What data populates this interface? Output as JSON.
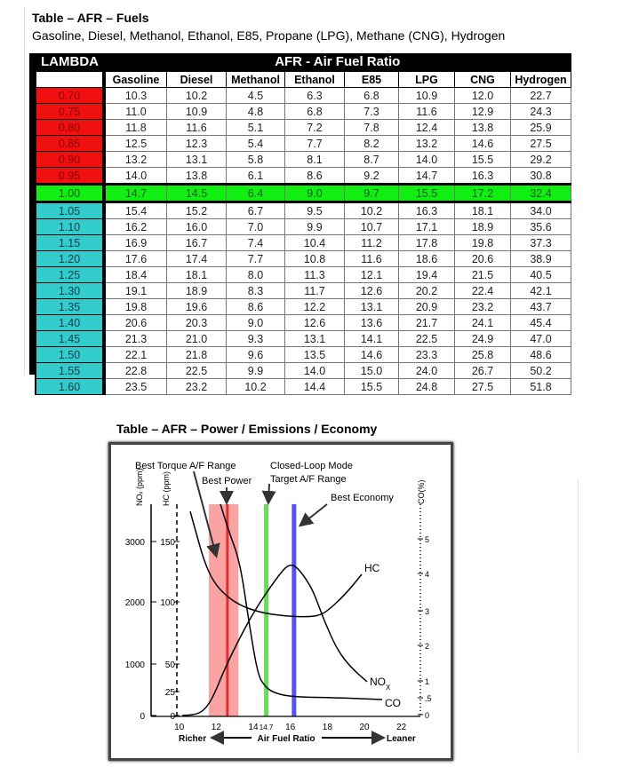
{
  "doc": {
    "title": "Table – AFR – Fuels",
    "subtitle": "Gasoline, Diesel, Methanol, Ethanol, E85, Propane (LPG), Methane (CNG), Hydrogen",
    "section2_title": "Table – AFR – Power / Emissions / Economy"
  },
  "afr_table": {
    "lambda_header": "LAMBDA",
    "group_header": "AFR - Air Fuel Ratio",
    "columns": [
      "Gasoline",
      "Diesel",
      "Methanol",
      "Ethanol",
      "E85",
      "LPG",
      "CNG",
      "Hydrogen"
    ],
    "colors": {
      "rich": "#f01010",
      "stoich": "#11ee11",
      "lean": "#33cccc"
    },
    "rows": [
      {
        "lambda": "0.70",
        "zone": "rich",
        "values": [
          "10.3",
          "10.2",
          "4.5",
          "6.3",
          "6.8",
          "10.9",
          "12.0",
          "22.7"
        ]
      },
      {
        "lambda": "0.75",
        "zone": "rich",
        "values": [
          "11.0",
          "10.9",
          "4.8",
          "6.8",
          "7.3",
          "11.6",
          "12.9",
          "24.3"
        ]
      },
      {
        "lambda": "0.80",
        "zone": "rich",
        "values": [
          "11.8",
          "11.6",
          "5.1",
          "7.2",
          "7.8",
          "12.4",
          "13.8",
          "25.9"
        ]
      },
      {
        "lambda": "0.85",
        "zone": "rich",
        "values": [
          "12.5",
          "12.3",
          "5.4",
          "7.7",
          "8.2",
          "13.2",
          "14.6",
          "27.5"
        ]
      },
      {
        "lambda": "0.90",
        "zone": "rich",
        "values": [
          "13.2",
          "13.1",
          "5.8",
          "8.1",
          "8.7",
          "14.0",
          "15.5",
          "29.2"
        ]
      },
      {
        "lambda": "0.95",
        "zone": "rich",
        "values": [
          "14.0",
          "13.8",
          "6.1",
          "8.6",
          "9.2",
          "14.7",
          "16.3",
          "30.8"
        ]
      },
      {
        "lambda": "1.00",
        "zone": "stoich",
        "values": [
          "14.7",
          "14.5",
          "6.4",
          "9.0",
          "9.7",
          "15.5",
          "17.2",
          "32.4"
        ]
      },
      {
        "lambda": "1.05",
        "zone": "lean",
        "values": [
          "15.4",
          "15.2",
          "6.7",
          "9.5",
          "10.2",
          "16.3",
          "18.1",
          "34.0"
        ]
      },
      {
        "lambda": "1.10",
        "zone": "lean",
        "values": [
          "16.2",
          "16.0",
          "7.0",
          "9.9",
          "10.7",
          "17.1",
          "18.9",
          "35.6"
        ]
      },
      {
        "lambda": "1.15",
        "zone": "lean",
        "values": [
          "16.9",
          "16.7",
          "7.4",
          "10.4",
          "11.2",
          "17.8",
          "19.8",
          "37.3"
        ]
      },
      {
        "lambda": "1.20",
        "zone": "lean",
        "values": [
          "17.6",
          "17.4",
          "7.7",
          "10.8",
          "11.6",
          "18.6",
          "20.6",
          "38.9"
        ]
      },
      {
        "lambda": "1.25",
        "zone": "lean",
        "values": [
          "18.4",
          "18.1",
          "8.0",
          "11.3",
          "12.1",
          "19.4",
          "21.5",
          "40.5"
        ]
      },
      {
        "lambda": "1.30",
        "zone": "lean",
        "values": [
          "19.1",
          "18.9",
          "8.3",
          "11.7",
          "12.6",
          "20.2",
          "22.4",
          "42.1"
        ]
      },
      {
        "lambda": "1.35",
        "zone": "lean",
        "values": [
          "19.8",
          "19.6",
          "8.6",
          "12.2",
          "13.1",
          "20.9",
          "23.2",
          "43.7"
        ]
      },
      {
        "lambda": "1.40",
        "zone": "lean",
        "values": [
          "20.6",
          "20.3",
          "9.0",
          "12.6",
          "13.6",
          "21.7",
          "24.1",
          "45.4"
        ]
      },
      {
        "lambda": "1.45",
        "zone": "lean",
        "values": [
          "21.3",
          "21.0",
          "9.3",
          "13.1",
          "14.1",
          "22.5",
          "24.9",
          "47.0"
        ]
      },
      {
        "lambda": "1.50",
        "zone": "lean",
        "values": [
          "22.1",
          "21.8",
          "9.6",
          "13.5",
          "14.6",
          "23.3",
          "25.8",
          "48.6"
        ]
      },
      {
        "lambda": "1.55",
        "zone": "lean",
        "values": [
          "22.8",
          "22.5",
          "9.9",
          "14.0",
          "15.0",
          "24.0",
          "26.7",
          "50.2"
        ]
      },
      {
        "lambda": "1.60",
        "zone": "lean",
        "values": [
          "23.5",
          "23.2",
          "10.2",
          "14.4",
          "15.5",
          "24.8",
          "27.5",
          "51.8"
        ]
      }
    ]
  },
  "chart_data": {
    "type": "line",
    "x_ticks": [
      "10",
      "12",
      "14",
      "14.7",
      "16",
      "18",
      "20",
      "22"
    ],
    "xlim": [
      10,
      23
    ],
    "xlabel": "Air Fuel Ratio",
    "x_left_label": "Richer",
    "x_right_label": "Leaner",
    "axes": [
      {
        "label": "NOₓ (ppm)",
        "ticks": [
          "3000",
          "2000",
          "1000",
          "0"
        ],
        "range": [
          0,
          3500
        ]
      },
      {
        "label": "HC (ppm)",
        "ticks": [
          "150",
          "100",
          "50",
          "25",
          "0"
        ],
        "range": [
          0,
          175
        ]
      },
      {
        "label": "CO(%)",
        "ticks": [
          "5",
          "4",
          "3",
          "2",
          "1",
          ".5",
          "0"
        ],
        "range": [
          0,
          5.9
        ]
      }
    ],
    "series": [
      {
        "name": "HC",
        "color": "#000000"
      },
      {
        "name": "NO",
        "subscript": "X",
        "color": "#000000"
      },
      {
        "name": "CO",
        "color": "#000000"
      }
    ],
    "regions": [
      {
        "label": "Best Torque A/F Range",
        "from": 11.6,
        "to": 13.2,
        "color": "#f9a3a3"
      },
      {
        "label": "Best Power",
        "at": 12.6,
        "color": "#e03030"
      },
      {
        "label1": "Closed-Loop Mode",
        "label2": "Target A/F Range",
        "at": 14.7,
        "color": "#66dd55"
      },
      {
        "label": "Best Economy",
        "at": 16.2,
        "color": "#5555ee"
      }
    ]
  }
}
